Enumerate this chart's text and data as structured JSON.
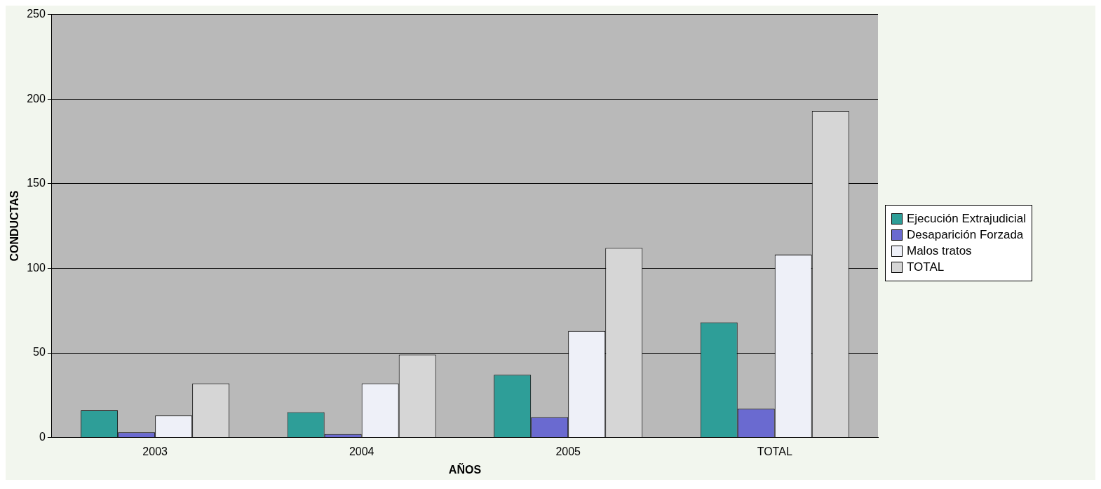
{
  "chart_data": {
    "type": "bar",
    "xlabel": "AÑOS",
    "ylabel": "CONDUCTAS",
    "categories": [
      "2003",
      "2004",
      "2005",
      "TOTAL"
    ],
    "series": [
      {
        "name": "Ejecución Extrajudicial",
        "color": "#2e9e98",
        "values": [
          16,
          15,
          37,
          68
        ]
      },
      {
        "name": "Desaparición Forzada",
        "color": "#6a6ad0",
        "values": [
          3,
          2,
          12,
          17
        ]
      },
      {
        "name": "Malos tratos",
        "color": "#eef0f8",
        "values": [
          13,
          32,
          63,
          108
        ]
      },
      {
        "name": "TOTAL",
        "color": "#d6d6d6",
        "values": [
          32,
          49,
          112,
          193
        ]
      }
    ],
    "ylim": [
      0,
      250
    ],
    "yticks": [
      0,
      50,
      100,
      150,
      200,
      250
    ],
    "grid": "y",
    "legend": "right"
  }
}
